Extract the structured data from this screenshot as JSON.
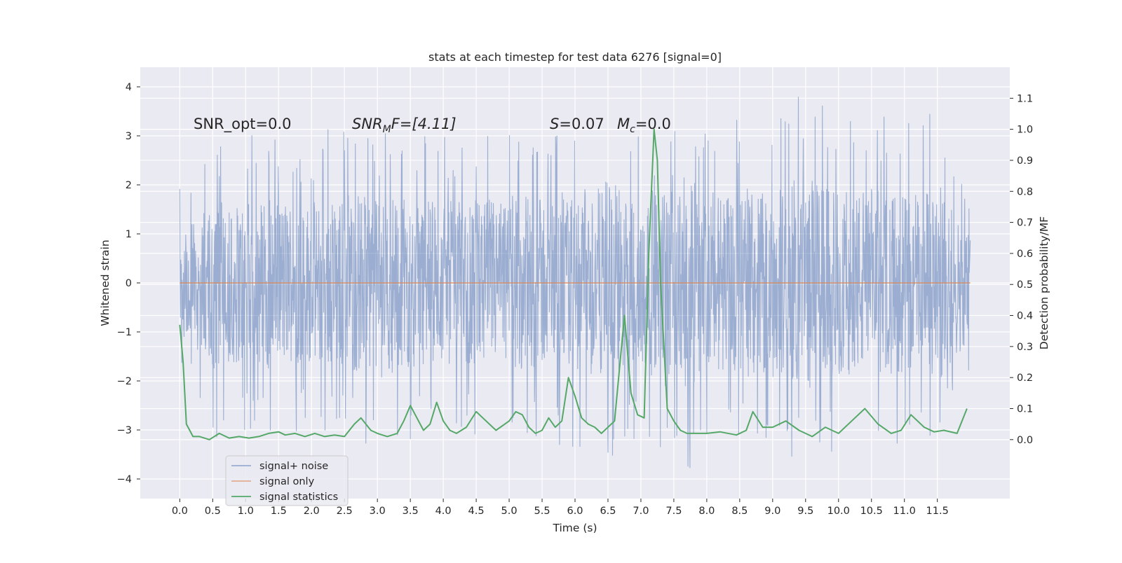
{
  "chart_data": {
    "type": "line",
    "title": "stats at each timestep for test data 6276 [signal=0]",
    "xlabel": "Time (s)",
    "ylabel_left": "Whitened strain",
    "ylabel_right": "Detection probability/MF",
    "xlim": [
      -0.6,
      12.6
    ],
    "ylim_left": [
      -4.4,
      4.4
    ],
    "ylim_right": [
      -0.19,
      1.2
    ],
    "xticks": [
      "0.0",
      "0.5",
      "1.0",
      "1.5",
      "2.0",
      "2.5",
      "3.0",
      "3.5",
      "4.0",
      "4.5",
      "5.0",
      "5.5",
      "6.0",
      "6.5",
      "7.0",
      "7.5",
      "8.0",
      "8.5",
      "9.0",
      "9.5",
      "10.0",
      "10.5",
      "11.0",
      "11.5"
    ],
    "yticks_left": [
      "4",
      "3",
      "2",
      "1",
      "0",
      "−1",
      "−2",
      "−3",
      "−4"
    ],
    "yticks_right": [
      "1.1",
      "1.0",
      "0.9",
      "0.8",
      "0.7",
      "0.6",
      "0.5",
      "0.4",
      "0.3",
      "0.2",
      "0.1",
      "0.0"
    ],
    "grid": true,
    "legend_position": "lower-left",
    "annotations": {
      "snr_opt": "SNR_opt=0.0",
      "snr_mf_main": "SNR",
      "snr_mf_sub": "M",
      "snr_mf_rest": "F=[4.11]",
      "s_label": "S",
      "s_value": "=0.07",
      "mc_main": "M",
      "mc_sub": "c",
      "mc_value": "=0.0"
    },
    "series": [
      {
        "name": "signal+ noise",
        "axis": "left",
        "color": "#4c72b0",
        "time_range": [
          0.0,
          12.0
        ],
        "envelope_x": [
          0.0,
          0.5,
          1.0,
          1.5,
          2.0,
          2.5,
          3.0,
          3.5,
          4.0,
          4.5,
          5.0,
          5.5,
          6.0,
          6.5,
          7.0,
          7.5,
          8.0,
          8.5,
          9.0,
          9.5,
          10.0,
          10.5,
          11.0,
          11.5,
          12.0
        ],
        "envelope_max": [
          2.0,
          3.0,
          3.2,
          3.0,
          2.9,
          3.5,
          3.1,
          3.2,
          3.0,
          3.0,
          3.3,
          3.1,
          3.2,
          3.4,
          3.0,
          3.2,
          3.3,
          3.5,
          3.6,
          4.0,
          3.4,
          3.5,
          3.4,
          3.9,
          2.0
        ],
        "envelope_min": [
          -1.7,
          -3.2,
          -3.0,
          -3.3,
          -3.0,
          -3.2,
          -3.6,
          -3.2,
          -3.0,
          -3.3,
          -3.0,
          -3.5,
          -3.4,
          -3.8,
          -3.2,
          -4.1,
          -3.5,
          -3.3,
          -3.4,
          -3.7,
          -3.5,
          -3.6,
          -3.3,
          -3.4,
          -1.8
        ],
        "min_x": [
          0.0,
          0.5,
          1.0,
          1.5,
          2.0,
          2.5,
          3.0,
          3.5,
          4.0,
          4.5,
          5.0,
          5.5,
          6.0,
          6.5,
          7.0,
          7.5,
          8.0,
          8.5,
          9.0,
          9.5,
          10.0,
          10.5,
          11.0,
          11.5,
          12.0
        ]
      },
      {
        "name": "signal only",
        "axis": "left",
        "color": "#dd8452",
        "x": [
          0.0,
          12.0
        ],
        "y": [
          0.0,
          0.0
        ]
      },
      {
        "name": "signal statistics",
        "axis": "right",
        "color": "#55a868",
        "x": [
          0.0,
          0.05,
          0.1,
          0.2,
          0.3,
          0.45,
          0.6,
          0.75,
          0.9,
          1.05,
          1.2,
          1.35,
          1.5,
          1.6,
          1.75,
          1.9,
          2.05,
          2.2,
          2.35,
          2.5,
          2.65,
          2.75,
          2.9,
          3.0,
          3.15,
          3.3,
          3.4,
          3.5,
          3.6,
          3.7,
          3.8,
          3.9,
          4.0,
          4.1,
          4.2,
          4.35,
          4.5,
          4.6,
          4.8,
          5.0,
          5.1,
          5.2,
          5.3,
          5.4,
          5.5,
          5.6,
          5.7,
          5.8,
          5.9,
          6.0,
          6.1,
          6.2,
          6.3,
          6.4,
          6.6,
          6.75,
          6.85,
          6.95,
          7.05,
          7.12,
          7.2,
          7.25,
          7.3,
          7.4,
          7.5,
          7.6,
          7.7,
          7.85,
          8.0,
          8.2,
          8.45,
          8.6,
          8.7,
          8.85,
          9.0,
          9.2,
          9.4,
          9.6,
          9.8,
          10.0,
          10.2,
          10.4,
          10.6,
          10.8,
          10.95,
          11.1,
          11.3,
          11.45,
          11.6,
          11.8,
          11.95
        ],
        "y": [
          0.37,
          0.25,
          0.05,
          0.01,
          0.01,
          0.0,
          0.02,
          0.005,
          0.01,
          0.005,
          0.01,
          0.02,
          0.025,
          0.015,
          0.02,
          0.01,
          0.02,
          0.01,
          0.015,
          0.01,
          0.05,
          0.07,
          0.03,
          0.02,
          0.01,
          0.02,
          0.06,
          0.11,
          0.07,
          0.03,
          0.05,
          0.12,
          0.06,
          0.03,
          0.02,
          0.04,
          0.09,
          0.07,
          0.03,
          0.06,
          0.09,
          0.08,
          0.04,
          0.02,
          0.03,
          0.07,
          0.04,
          0.06,
          0.2,
          0.14,
          0.07,
          0.05,
          0.04,
          0.02,
          0.06,
          0.4,
          0.15,
          0.08,
          0.07,
          0.6,
          1.0,
          0.9,
          0.5,
          0.1,
          0.06,
          0.03,
          0.02,
          0.02,
          0.02,
          0.025,
          0.015,
          0.03,
          0.09,
          0.04,
          0.04,
          0.06,
          0.03,
          0.01,
          0.04,
          0.02,
          0.06,
          0.1,
          0.05,
          0.02,
          0.03,
          0.08,
          0.04,
          0.025,
          0.03,
          0.02,
          0.1
        ]
      }
    ]
  }
}
